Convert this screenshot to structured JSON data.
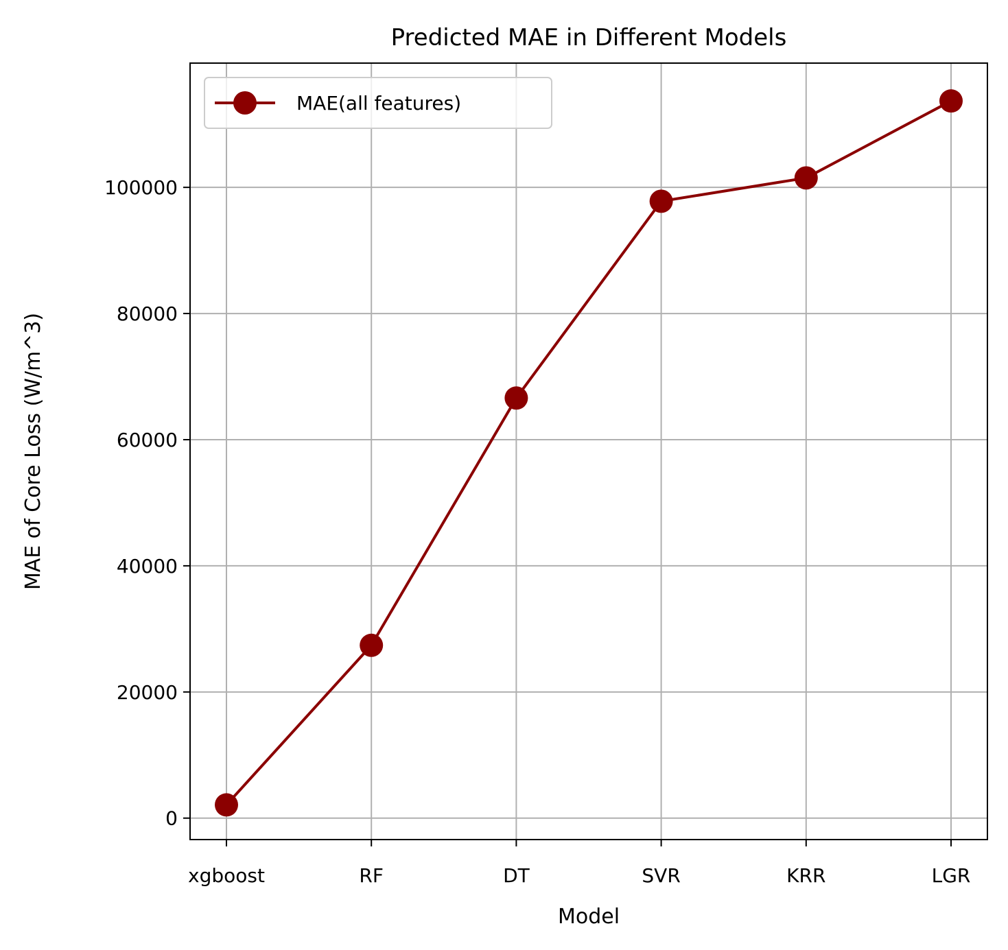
{
  "chart_data": {
    "type": "line",
    "title": "Predicted MAE in Different Models",
    "xlabel": "Model",
    "ylabel": "MAE of Core Loss (W/m^3)",
    "categories": [
      "xgboost",
      "RF",
      "DT",
      "SVR",
      "KRR",
      "LGR"
    ],
    "series": [
      {
        "name": "MAE(all features)",
        "values": [
          2100,
          27400,
          66600,
          97800,
          101500,
          113700
        ],
        "color": "#8b0000",
        "marker": "circle"
      }
    ],
    "ylim": [
      -3400,
      119700
    ],
    "yticks": [
      0,
      20000,
      40000,
      60000,
      80000,
      100000
    ],
    "ytick_labels": [
      "0",
      "20000",
      "40000",
      "60000",
      "80000",
      "100000"
    ],
    "grid": true,
    "legend_position": "top-left"
  }
}
